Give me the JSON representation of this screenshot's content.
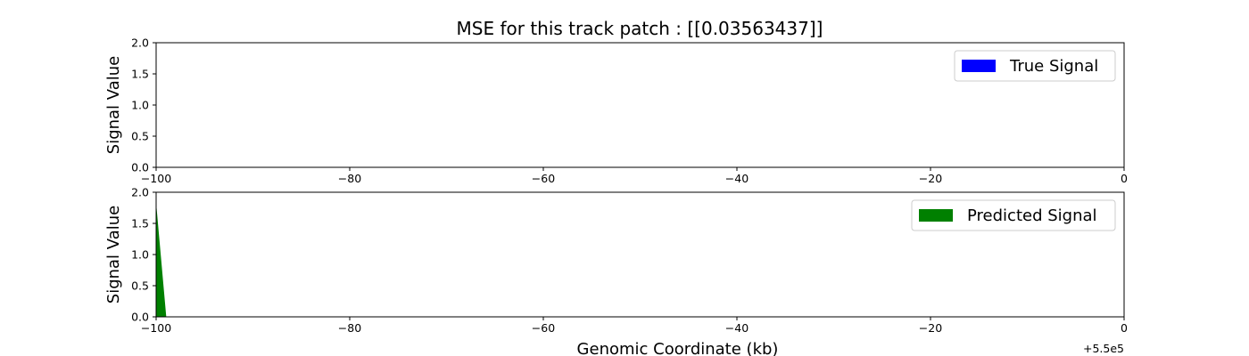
{
  "chart_data": {
    "type": "area",
    "title": "MSE for this track patch : [[0.03563437]]",
    "x_offset_label": "+5.5e5",
    "subplots": [
      {
        "name": "true",
        "ylabel": "Signal Value",
        "xlabel": "",
        "xlim": [
          -100,
          0
        ],
        "ylim": [
          0,
          2.0
        ],
        "xticks": [
          -100,
          -80,
          -60,
          -40,
          -20,
          0
        ],
        "xtick_labels": [
          "−100",
          "−80",
          "−60",
          "−40",
          "−20",
          "0"
        ],
        "yticks": [
          0.0,
          0.5,
          1.0,
          1.5,
          2.0
        ],
        "ytick_labels": [
          "0.0",
          "0.5",
          "1.0",
          "1.5",
          "2.0"
        ],
        "series": [
          {
            "name": "True Signal",
            "color": "#0000ff",
            "x": [
              -100,
              -0.5
            ],
            "y": [
              0.0,
              0.0
            ]
          }
        ],
        "legend": "top-right"
      },
      {
        "name": "pred",
        "ylabel": "Signal Value",
        "xlabel": "Genomic Coordinate (kb)",
        "xlim": [
          -100,
          0
        ],
        "ylim": [
          0,
          2.0
        ],
        "xticks": [
          -100,
          -80,
          -60,
          -40,
          -20,
          0
        ],
        "xtick_labels": [
          "−100",
          "−80",
          "−60",
          "−40",
          "−20",
          "0"
        ],
        "yticks": [
          0.0,
          0.5,
          1.0,
          1.5,
          2.0
        ],
        "ytick_labels": [
          "0.0",
          "0.5",
          "1.0",
          "1.5",
          "2.0"
        ],
        "series": [
          {
            "name": "Predicted Signal",
            "color": "#008000",
            "x": [
              -100,
              -99,
              -98,
              -97,
              -50,
              -0.5
            ],
            "y": [
              1.75,
              0.0,
              0.0,
              0.0,
              0.0,
              0.0
            ]
          }
        ],
        "legend": "top-right"
      }
    ]
  }
}
